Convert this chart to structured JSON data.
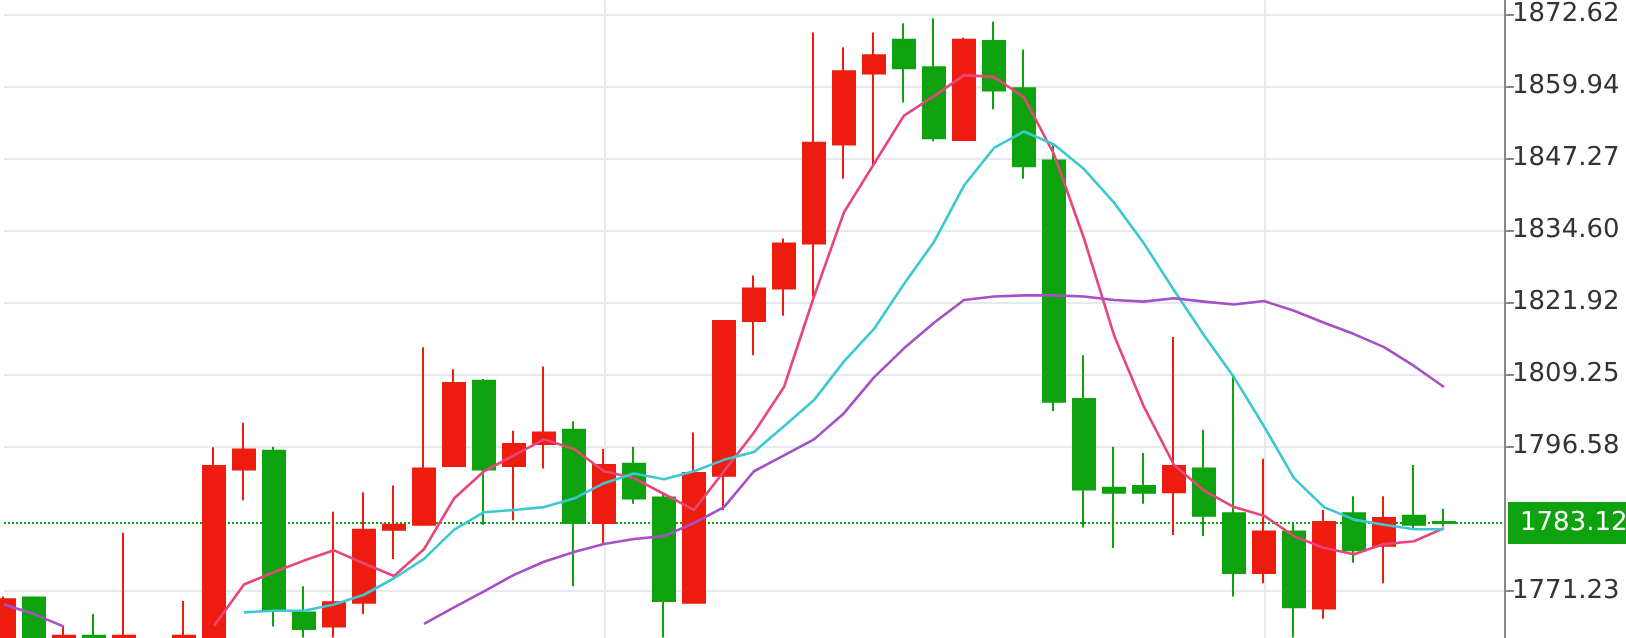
{
  "chart_data": {
    "type": "candlestick",
    "categories": [
      null,
      null,
      null,
      null,
      null,
      null,
      null,
      null,
      null,
      null,
      null,
      null,
      null,
      null,
      null,
      null,
      null,
      null,
      null,
      null,
      null,
      null,
      null,
      null,
      null,
      null,
      null,
      null,
      null,
      null,
      null,
      null,
      null,
      null,
      null,
      null,
      null,
      null,
      null,
      null,
      null,
      null,
      null,
      null,
      null,
      null,
      null,
      null,
      null
    ],
    "ohlc": [
      [
        1763.0,
        1770.2,
        1763.0,
        1769.7
      ],
      [
        1770.0,
        1770.0,
        1763.0,
        1763.0
      ],
      [
        1763.0,
        1764.9,
        1763.0,
        1763.3
      ],
      [
        1763.3,
        1767.1,
        1763.0,
        1763.0
      ],
      [
        1763.0,
        1781.4,
        1763.0,
        1763.3
      ],
      null,
      [
        1763.0,
        1769.4,
        1763.0,
        1763.3
      ],
      [
        1763.0,
        1796.4,
        1763.0,
        1793.1
      ],
      [
        1792.5,
        1800.7,
        1787.1,
        1796.0
      ],
      [
        1795.8,
        1796.5,
        1764.9,
        1767.7
      ],
      [
        1767.4,
        1772.0,
        1763.0,
        1764.5
      ],
      [
        1764.9,
        1785.1,
        1763.0,
        1769.2
      ],
      [
        1769.1,
        1788.5,
        1767.1,
        1781.9
      ],
      [
        1781.9,
        1789.7,
        1776.8,
        1782.8
      ],
      [
        1782.8,
        1814.0,
        1782.8,
        1792.7
      ],
      [
        1793.1,
        1810.1,
        1793.1,
        1807.7
      ],
      [
        1808.1,
        1808.4,
        1782.8,
        1792.5
      ],
      [
        1793.1,
        1799.3,
        1783.6,
        1797.0
      ],
      [
        1797.0,
        1810.6,
        1792.7,
        1799.0
      ],
      [
        1799.5,
        1801.0,
        1772.0,
        1783.1
      ],
      [
        1783.1,
        1796.1,
        1779.4,
        1793.3
      ],
      [
        1793.5,
        1796.5,
        1786.5,
        1787.4
      ],
      [
        1787.6,
        1788.2,
        1763.0,
        1769.4
      ],
      [
        1769.1,
        1799.0,
        1769.1,
        1791.9
      ],
      [
        1791.4,
        1818.6,
        1785.4,
        1818.6
      ],
      [
        1818.6,
        1826.6,
        1812.6,
        1824.3
      ],
      [
        1824.3,
        1833.1,
        1819.5,
        1832.2
      ],
      [
        1832.2,
        1869.3,
        1822.9,
        1849.9
      ],
      [
        1849.6,
        1866.7,
        1843.6,
        1862.5
      ],
      [
        1862.1,
        1869.3,
        1845.9,
        1865.3
      ],
      [
        1868.0,
        1870.9,
        1857.0,
        1863.0
      ],
      [
        1863.2,
        1871.8,
        1850.2,
        1850.7
      ],
      [
        1850.4,
        1868.4,
        1850.4,
        1868.0
      ],
      [
        1867.8,
        1871.2,
        1855.8,
        1859.1
      ],
      [
        1859.5,
        1866.3,
        1843.6,
        1845.8
      ],
      [
        1846.8,
        1849.6,
        1802.8,
        1804.4
      ],
      [
        1804.9,
        1812.6,
        1782.3,
        1789.0
      ],
      [
        1789.3,
        1796.5,
        1778.7,
        1788.4
      ],
      [
        1789.6,
        1795.4,
        1786.5,
        1788.4
      ],
      [
        1788.5,
        1815.8,
        1781.0,
        1793.1
      ],
      [
        1792.7,
        1799.5,
        1780.8,
        1784.4
      ],
      [
        1784.8,
        1809.2,
        1770.2,
        1774.3
      ],
      [
        1774.3,
        1794.4,
        1772.5,
        1781.6
      ],
      [
        1781.6,
        1783.3,
        1763.0,
        1768.3
      ],
      [
        1768.1,
        1785.4,
        1766.3,
        1783.3
      ],
      [
        1784.8,
        1787.8,
        1776.1,
        1778.3
      ],
      [
        1779.1,
        1787.8,
        1772.5,
        1784.0
      ],
      [
        1784.4,
        1793.3,
        1781.9,
        1782.8
      ],
      [
        1783.3,
        1785.6,
        1782.5,
        1783.1
      ]
    ],
    "colors": [
      "#ee1c0e",
      "#0ea30e",
      "#ee1c0e",
      "#0ea30e",
      "#ee1c0e",
      null,
      "#ee1c0e",
      "#ee1c0e",
      "#ee1c0e",
      "#0ea30e",
      "#0ea30e",
      "#ee1c0e",
      "#ee1c0e",
      "#ee1c0e",
      "#ee1c0e",
      "#ee1c0e",
      "#0ea30e",
      "#ee1c0e",
      "#ee1c0e",
      "#0ea30e",
      "#ee1c0e",
      "#0ea30e",
      "#0ea30e",
      "#ee1c0e",
      "#ee1c0e",
      "#ee1c0e",
      "#ee1c0e",
      "#ee1c0e",
      "#ee1c0e",
      "#ee1c0e",
      "#0ea30e",
      "#0ea30e",
      "#ee1c0e",
      "#0ea30e",
      "#0ea30e",
      "#0ea30e",
      "#0ea30e",
      "#0ea30e",
      "#0ea30e",
      "#ee1c0e",
      "#0ea30e",
      "#0ea30e",
      "#ee1c0e",
      "#0ea30e",
      "#ee1c0e",
      "#0ea30e",
      "#ee1c0e",
      "#0ea30e",
      "#0ea30e"
    ],
    "series": [
      {
        "type": "line",
        "color": "#e8457a",
        "values": [
          null,
          null,
          null,
          null,
          null,
          null,
          null,
          1765.0,
          1772.3,
          1774.5,
          1776.5,
          1778.3,
          1776.0,
          1773.8,
          1778.5,
          1787.4,
          1792.2,
          1795.0,
          1797.8,
          1796.1,
          1792.2,
          1791.0,
          1788.2,
          1785.4,
          1792.2,
          1799.0,
          1807.0,
          1822.9,
          1837.7,
          1846.2,
          1854.7,
          1858.1,
          1861.8,
          1861.5,
          1857.9,
          1847.9,
          1833.1,
          1816.1,
          1803.5,
          1793.3,
          1788.8,
          1785.9,
          1784.4,
          1780.8,
          1778.7,
          1777.6,
          1779.4,
          1779.9,
          1782.2
        ]
      },
      {
        "type": "line",
        "color": "#3cc8d2",
        "values": [
          null,
          null,
          null,
          null,
          null,
          null,
          null,
          null,
          1767.4,
          1767.7,
          1767.7,
          1768.8,
          1770.5,
          1773.4,
          1776.8,
          1781.9,
          1785.0,
          1785.4,
          1785.9,
          1787.4,
          1790.1,
          1791.8,
          1790.8,
          1792.2,
          1794.2,
          1795.6,
          1800.1,
          1804.7,
          1811.5,
          1817.2,
          1825.1,
          1832.5,
          1842.4,
          1849.0,
          1851.9,
          1849.6,
          1845.3,
          1839.4,
          1832.2,
          1824.0,
          1816.1,
          1808.7,
          1800.1,
          1791.0,
          1785.9,
          1783.7,
          1782.8,
          1782.0,
          1782.0
        ]
      },
      {
        "type": "line",
        "color": "#a64fc6",
        "values": [
          1768.8,
          1767.1,
          1764.9,
          null,
          null,
          null,
          null,
          null,
          null,
          null,
          null,
          null,
          null,
          null,
          1765.4,
          1768.3,
          1771.1,
          1774.0,
          1776.3,
          1778.0,
          1779.4,
          1780.3,
          1780.8,
          1783.1,
          1785.9,
          1792.2,
          1795.0,
          1797.8,
          1802.4,
          1808.7,
          1813.8,
          1818.3,
          1822.3,
          1822.9,
          1823.1,
          1823.1,
          1822.9,
          1822.3,
          1822.0,
          1822.6,
          1822.0,
          1821.5,
          1822.1,
          1820.4,
          1818.3,
          1816.3,
          1814.0,
          1810.7,
          1807.0
        ]
      }
    ],
    "ylim": [
      1762.9,
      1875
    ],
    "yticks": [
      1771.23,
      1796.58,
      1809.25,
      1821.92,
      {
        "value": 1834.6,
        "label": "1834.60"
      },
      1847.27,
      1859.94,
      1872.62
    ],
    "grid": true,
    "marker": "none",
    "ref_lines": [
      {
        "axis": "y",
        "value": 1783.12,
        "label": "1783.12",
        "color": "#0ea30e",
        "line_style": "dotted"
      }
    ]
  }
}
